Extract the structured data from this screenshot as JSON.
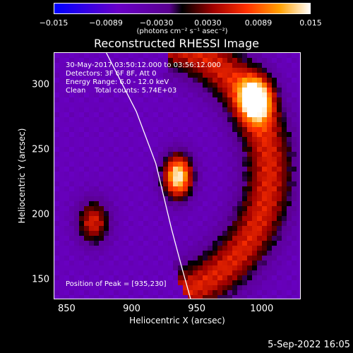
{
  "chart_data": {
    "type": "heatmap",
    "title": "Reconstructed RHESSI Image",
    "xlabel": "Heliocentric X (arcsec)",
    "ylabel": "Heliocentric Y (arcsec)",
    "xlim": [
      840,
      1030
    ],
    "ylim": [
      135,
      325
    ],
    "xticks": [
      850,
      900,
      950,
      1000
    ],
    "yticks": [
      150,
      200,
      250,
      300
    ],
    "colorbar": {
      "ticks": [
        -0.015,
        -0.0089,
        -0.003,
        0.003,
        0.0089,
        0.015
      ],
      "tick_labels": [
        "−0.015",
        "−0.0089",
        "−0.0030",
        "0.0030",
        "0.0089",
        "0.015"
      ],
      "range": [
        -0.015,
        0.015
      ],
      "unit_label": "(photons cm⁻² s⁻¹ asec⁻²)"
    },
    "info_lines": [
      "30-May-2017 03:50:12.000 to 03:56:12.000",
      "Detectors: 3F 6F 8F, Att 0",
      "Energy Range: 6.0 - 12.0 keV",
      "Clean    Total counts: 5.74E+03"
    ],
    "peak_label": "Position of Peak = [935,230]",
    "peak": [
      935,
      230
    ],
    "sources": [
      {
        "x": 935,
        "y": 230,
        "peak": 0.015,
        "sx": 8,
        "sy": 12
      },
      {
        "x": 995,
        "y": 290,
        "peak": 0.012,
        "sx": 9,
        "sy": 12
      },
      {
        "x": 870,
        "y": 195,
        "peak": 0.006,
        "sx": 9,
        "sy": 12
      }
    ],
    "arc_emission": {
      "center": [
        905,
        235
      ],
      "radius": 100,
      "angle_range_deg": [
        -70,
        75
      ],
      "width": 14,
      "peak": 0.009
    },
    "background_level": -0.006,
    "limb_points": [
      [
        880,
        325
      ],
      [
        903,
        280
      ],
      [
        918,
        240
      ],
      [
        930,
        190
      ],
      [
        938,
        160
      ],
      [
        945,
        135
      ]
    ]
  },
  "timestamp": "5-Sep-2022 16:05"
}
